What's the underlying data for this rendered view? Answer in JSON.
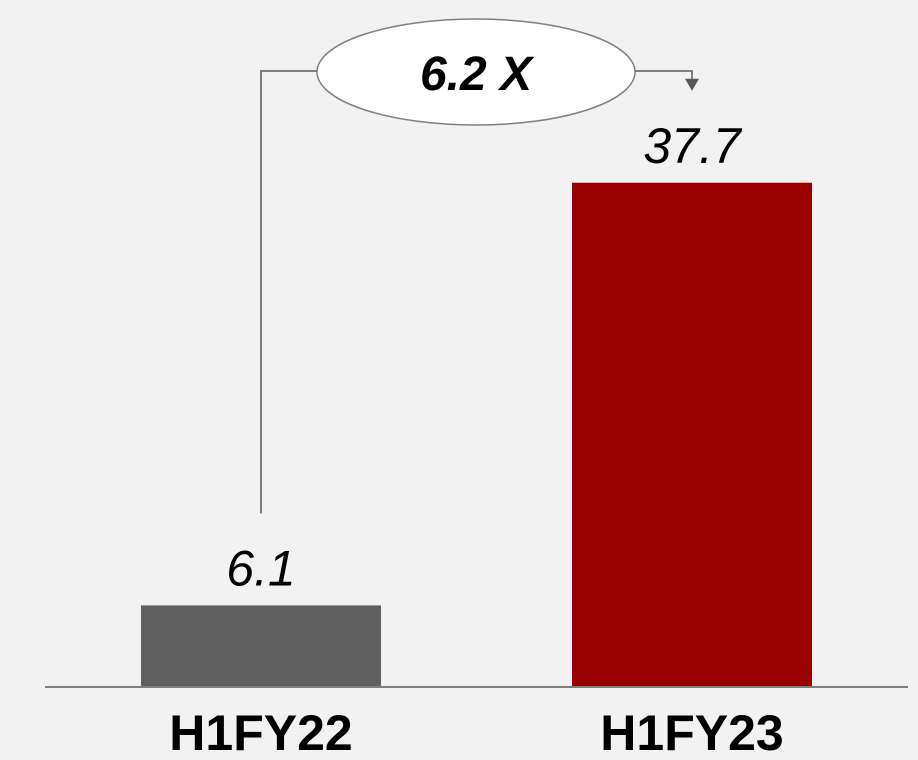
{
  "chart_data": {
    "type": "bar",
    "title": "",
    "xlabel": "",
    "ylabel": "",
    "categories": [
      "H1FY22",
      "H1FY23"
    ],
    "values": [
      6.1,
      37.7
    ],
    "value_labels": [
      "6.1",
      "37.7"
    ],
    "ylim": [
      0,
      40
    ],
    "grid": false,
    "annotation": {
      "text": "6.2 X",
      "from": "H1FY22",
      "to": "H1FY23"
    },
    "colors": [
      "#606060",
      "#990000"
    ]
  }
}
